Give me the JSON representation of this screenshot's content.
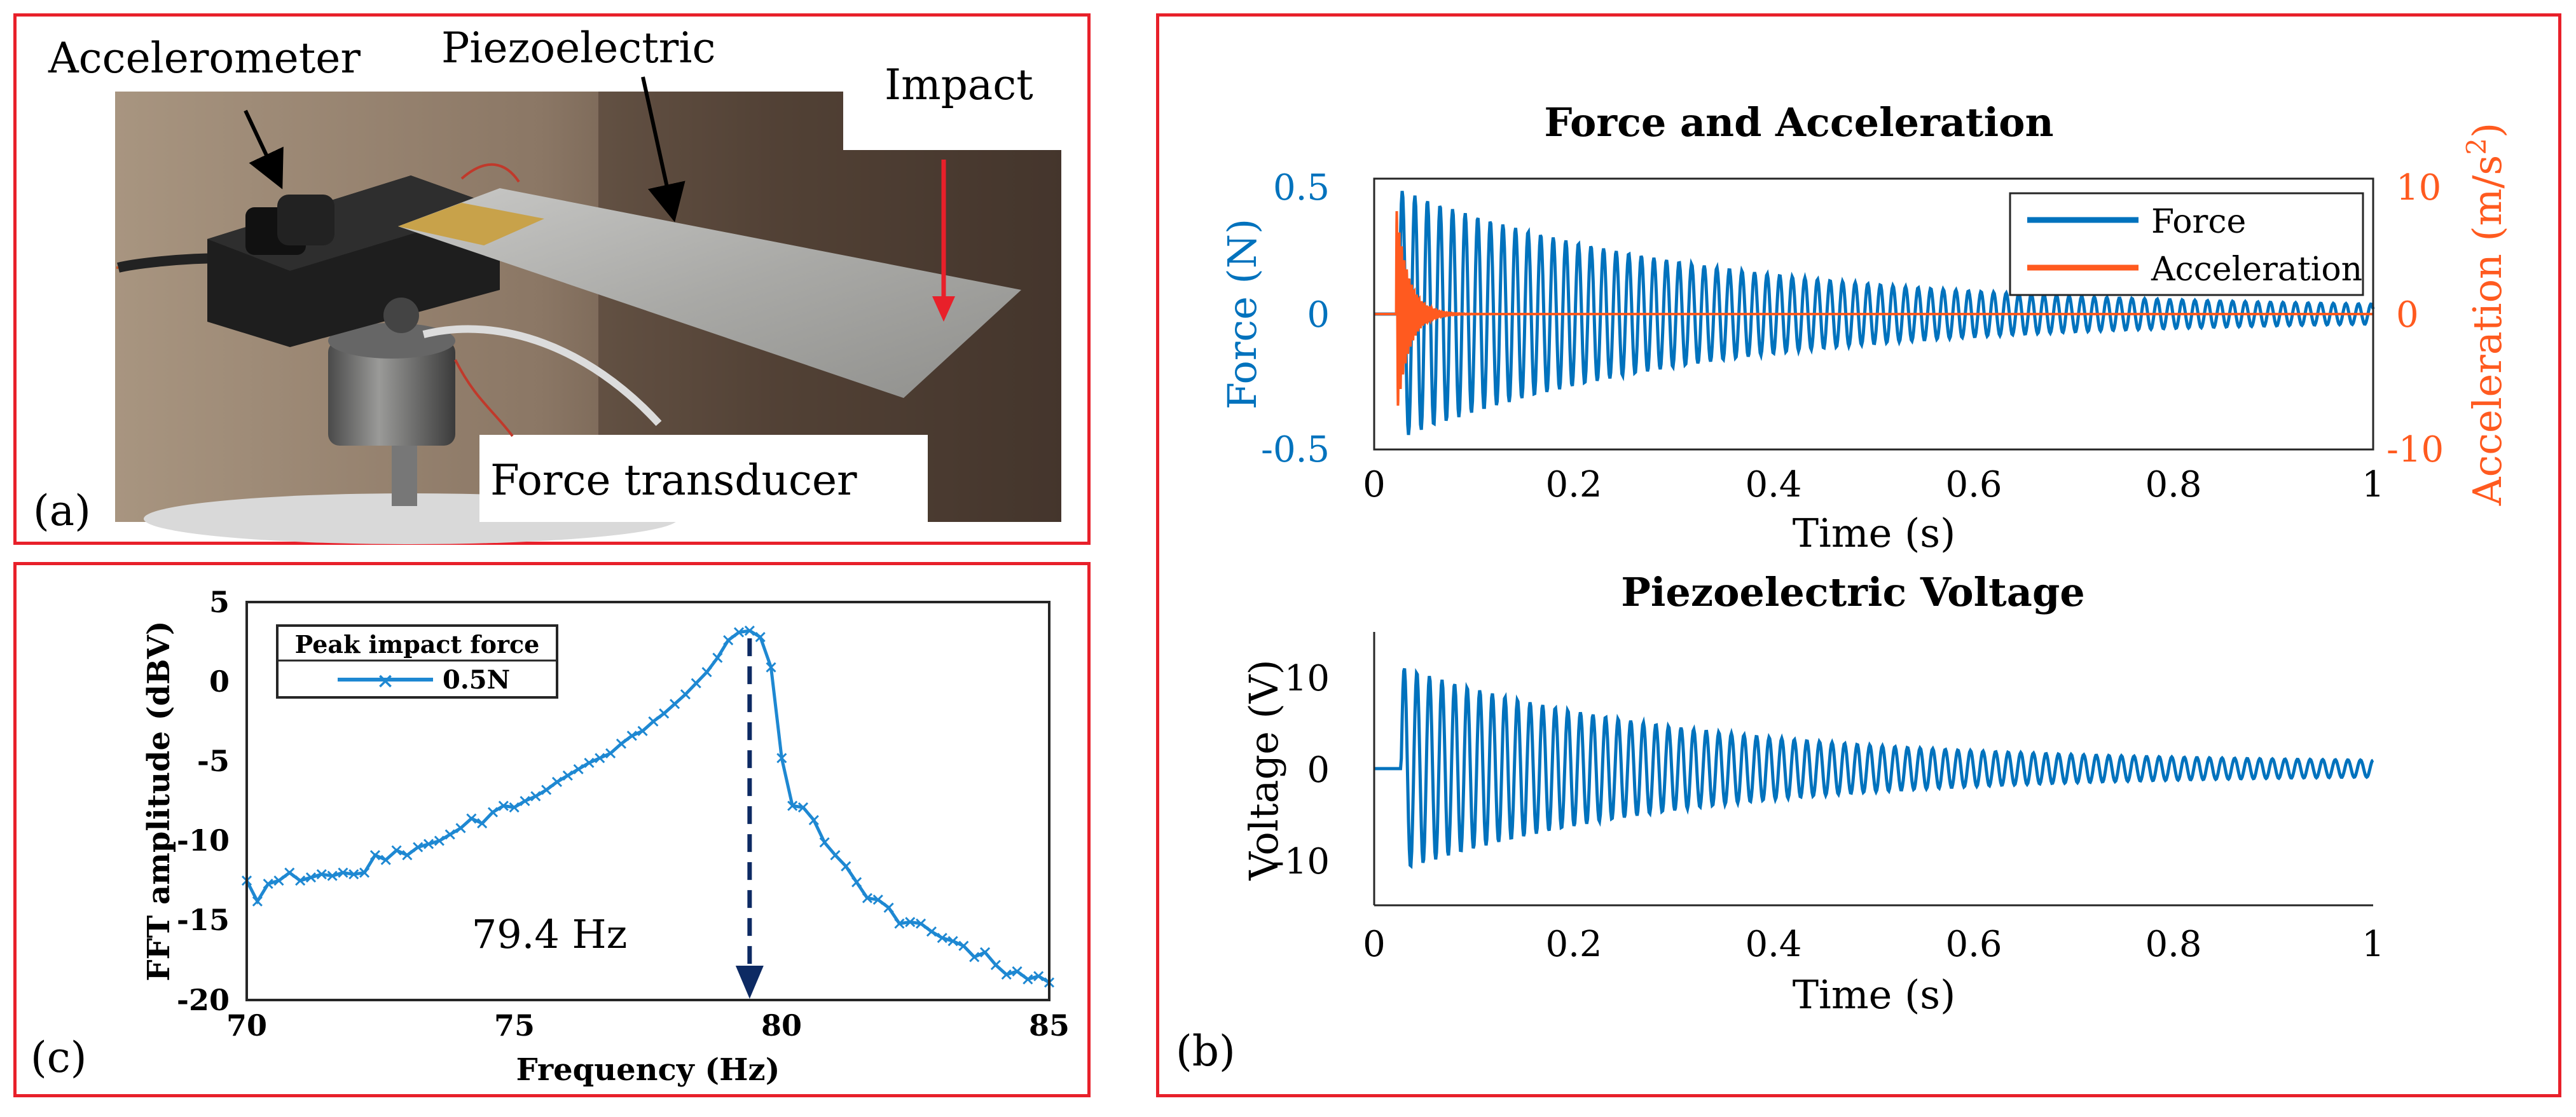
{
  "panel_a": {
    "label": "(a)",
    "annotations": {
      "accelerometer": "Accelerometer",
      "piezoelectric": "Piezoelectric",
      "impact": "Impact",
      "force_transducer": "Force transducer"
    }
  },
  "colors": {
    "force": "#0072bd",
    "acceleration": "#ff5a1f",
    "voltage": "#0072bd",
    "fft": "#1e88d2",
    "frame": "#e8202a",
    "impact_arrow": "#e8202a",
    "peak_arrow": "#0d2a63"
  },
  "chart_data": [
    {
      "id": "force-acceleration",
      "panel_label": "(b)",
      "type": "line",
      "title": "Force and Acceleration",
      "xlabel": "Time (s)",
      "ylabel_left": "Force (N)",
      "ylabel_right": "Acceleration (m/s²)",
      "ylabel_right_base": "Acceleration (m/s",
      "ylabel_right_sup": "2",
      "ylabel_right_close": ")",
      "xlim": [
        0,
        1
      ],
      "ylim_left": [
        -0.5,
        0.5
      ],
      "ylim_right": [
        -10,
        10
      ],
      "xticks": [
        "0",
        "0.2",
        "0.4",
        "0.6",
        "0.8",
        "1"
      ],
      "yticks_left": [
        "0.5",
        "0",
        "-0.5"
      ],
      "yticks_right": [
        "10",
        "0",
        "-10"
      ],
      "legend_position": "top-right",
      "series": [
        {
          "name": "Force",
          "axis": "left",
          "onset_s": 0.025,
          "peak": 0.46,
          "frequency_hz": 79.4,
          "decay_time_s": 0.3,
          "final_amplitude": 0.02
        },
        {
          "name": "Acceleration",
          "axis": "right",
          "onset_s": 0.022,
          "peak": 8.0,
          "frequency_hz": 400,
          "decay_time_s": 0.012,
          "final_amplitude": 0.0
        }
      ]
    },
    {
      "id": "piezo-voltage",
      "type": "line",
      "title": "Piezoelectric Voltage",
      "xlabel": "Time (s)",
      "ylabel": "Voltage (V)",
      "xlim": [
        0,
        1
      ],
      "ylim": [
        -15,
        15
      ],
      "xticks": [
        "0",
        "0.2",
        "0.4",
        "0.6",
        "0.8",
        "1"
      ],
      "yticks": [
        "10",
        "0",
        "-10"
      ],
      "series": [
        {
          "name": "Voltage",
          "onset_s": 0.027,
          "peak": 11.2,
          "frequency_hz": 79.4,
          "decay_time_s": 0.28,
          "final_amplitude": 0.6
        }
      ]
    },
    {
      "id": "fft",
      "panel_label": "(c)",
      "type": "line",
      "xlabel": "Frequency (Hz)",
      "ylabel": "FFT amplitude (dBV)",
      "xlim": [
        70,
        85
      ],
      "ylim": [
        -20,
        5
      ],
      "xticks": [
        "70",
        "75",
        "80",
        "85"
      ],
      "yticks": [
        "5",
        "0",
        "-5",
        "-10",
        "-15",
        "-20"
      ],
      "legend_title": "Peak impact force",
      "legend_position": "top-left",
      "peak_annotation": "79.4 Hz",
      "peak_frequency_hz": 79.4,
      "series": [
        {
          "name": "0.5N",
          "x": [
            70.0,
            70.2,
            70.4,
            70.6,
            70.8,
            71.0,
            71.2,
            71.4,
            71.6,
            71.8,
            72.0,
            72.2,
            72.4,
            72.6,
            72.8,
            73.0,
            73.2,
            73.4,
            73.6,
            73.8,
            74.0,
            74.2,
            74.4,
            74.6,
            74.8,
            75.0,
            75.2,
            75.4,
            75.6,
            75.8,
            76.0,
            76.2,
            76.4,
            76.6,
            76.8,
            77.0,
            77.2,
            77.4,
            77.6,
            77.8,
            78.0,
            78.2,
            78.4,
            78.6,
            78.8,
            79.0,
            79.2,
            79.4,
            79.6,
            79.8,
            80.0,
            80.2,
            80.4,
            80.6,
            80.8,
            81.0,
            81.2,
            81.4,
            81.6,
            81.8,
            82.0,
            82.2,
            82.4,
            82.6,
            82.8,
            83.0,
            83.2,
            83.4,
            83.6,
            83.8,
            84.0,
            84.2,
            84.4,
            84.6,
            84.8,
            85.0
          ],
          "y": [
            -12.5,
            -13.8,
            -12.7,
            -12.5,
            -12.0,
            -12.5,
            -12.3,
            -12.1,
            -12.2,
            -12.0,
            -12.1,
            -12.0,
            -10.9,
            -11.2,
            -10.6,
            -10.9,
            -10.4,
            -10.2,
            -10.0,
            -9.6,
            -9.2,
            -8.6,
            -8.9,
            -8.2,
            -7.8,
            -7.9,
            -7.5,
            -7.2,
            -6.8,
            -6.3,
            -5.9,
            -5.5,
            -5.1,
            -4.8,
            -4.5,
            -3.9,
            -3.4,
            -3.1,
            -2.5,
            -2.0,
            -1.4,
            -0.8,
            -0.1,
            0.6,
            1.5,
            2.6,
            3.1,
            3.2,
            2.8,
            0.9,
            -4.8,
            -7.8,
            -7.9,
            -8.7,
            -10.1,
            -10.9,
            -11.6,
            -12.6,
            -13.6,
            -13.7,
            -14.2,
            -15.2,
            -15.1,
            -15.2,
            -15.7,
            -16.1,
            -16.3,
            -16.6,
            -17.3,
            -17.0,
            -17.8,
            -18.4,
            -18.2,
            -18.7,
            -18.5,
            -18.9
          ]
        }
      ]
    }
  ]
}
